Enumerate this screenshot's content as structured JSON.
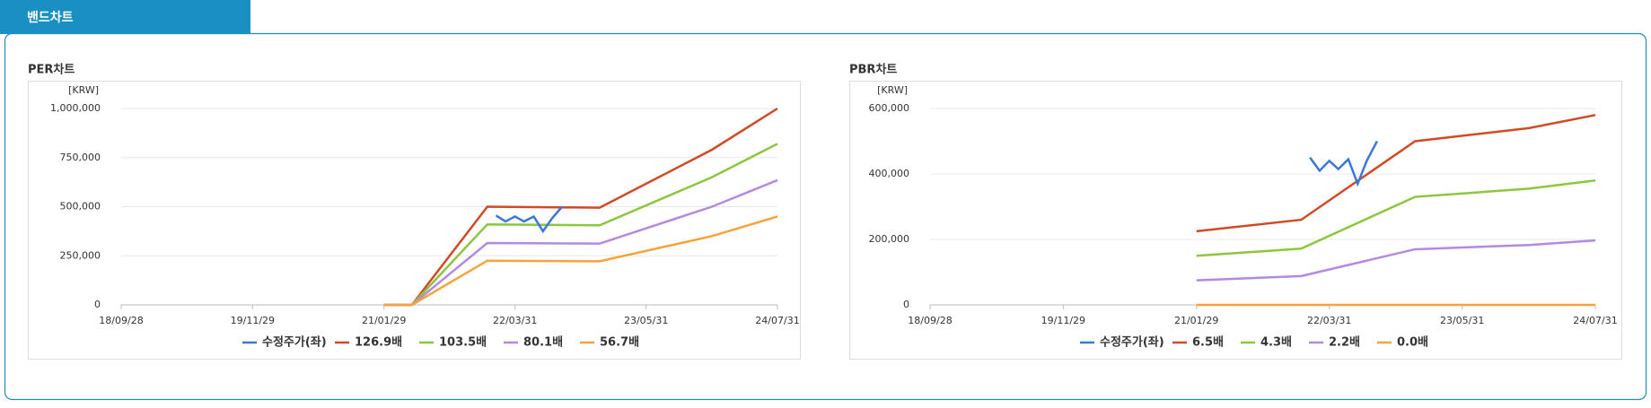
{
  "tab": {
    "title": "밴드차트"
  },
  "chart_data": [
    {
      "type": "line",
      "title": "PER차트",
      "unit": "[KRW]",
      "xlim": [
        "18/09/28",
        "24/07/31"
      ],
      "xticks": [
        "18/09/28",
        "19/11/29",
        "21/01/29",
        "22/03/31",
        "23/05/31",
        "24/07/31"
      ],
      "ylim": [
        0,
        1000000
      ],
      "yticks": [
        0,
        {
          "value": 250000,
          "label": "250,000"
        },
        {
          "value": 500000,
          "label": "500,000"
        },
        {
          "value": 750000,
          "label": "750,000"
        },
        {
          "value": 1000000,
          "label": "1,000,000"
        }
      ],
      "grid": true,
      "series": [
        {
          "name": "수정주가(좌)",
          "color": "#3a78d8",
          "x": [
            "22/01/28",
            "22/02/28",
            "22/03/31",
            "22/04/29",
            "22/05/31",
            "22/06/30",
            "22/07/29",
            "22/08/31"
          ],
          "values": [
            455000,
            425000,
            450000,
            425000,
            450000,
            375000,
            440000,
            500000
          ]
        },
        {
          "name": "126.9배",
          "color": "#d14a24",
          "x": [
            "21/01/29",
            "21/04/30",
            "21/12/31",
            "22/12/31",
            "23/12/31",
            "24/07/31"
          ],
          "values": [
            0,
            0,
            500000,
            495000,
            790000,
            1000000
          ]
        },
        {
          "name": "103.5배",
          "color": "#8cc63f",
          "x": [
            "21/01/29",
            "21/04/30",
            "21/12/31",
            "22/12/31",
            "23/12/31",
            "24/07/31"
          ],
          "values": [
            0,
            0,
            410000,
            405000,
            650000,
            820000
          ]
        },
        {
          "name": "80.1배",
          "color": "#b28ae0",
          "x": [
            "21/01/29",
            "21/04/30",
            "21/12/31",
            "22/12/31",
            "23/12/31",
            "24/07/31"
          ],
          "values": [
            0,
            0,
            315000,
            312000,
            500000,
            635000
          ]
        },
        {
          "name": "56.7배",
          "color": "#f5a33a",
          "x": [
            "21/01/29",
            "21/04/30",
            "21/12/31",
            "22/12/31",
            "23/12/31",
            "24/07/31"
          ],
          "values": [
            0,
            0,
            225000,
            222000,
            350000,
            450000
          ]
        }
      ]
    },
    {
      "type": "line",
      "title": "PBR차트",
      "unit": "[KRW]",
      "xlim": [
        "18/09/28",
        "24/07/31"
      ],
      "xticks": [
        "18/09/28",
        "19/11/29",
        "21/01/29",
        "22/03/31",
        "23/05/31",
        "24/07/31"
      ],
      "ylim": [
        0,
        600000
      ],
      "yticks": [
        0,
        {
          "value": 200000,
          "label": "200,000"
        },
        {
          "value": 400000,
          "label": "400,000"
        },
        {
          "value": 600000,
          "label": "600,000"
        }
      ],
      "grid": true,
      "series": [
        {
          "name": "수정주가(좌)",
          "color": "#3a78d8",
          "x": [
            "22/01/28",
            "22/02/28",
            "22/03/31",
            "22/04/29",
            "22/05/31",
            "22/06/30",
            "22/07/29",
            "22/08/31"
          ],
          "values": [
            450000,
            410000,
            440000,
            415000,
            445000,
            370000,
            440000,
            500000
          ]
        },
        {
          "name": "6.5배",
          "color": "#d14a24",
          "x": [
            "21/01/29",
            "21/12/31",
            "22/12/31",
            "23/12/31",
            "24/07/31"
          ],
          "values": [
            225000,
            260000,
            500000,
            540000,
            580000
          ]
        },
        {
          "name": "4.3배",
          "color": "#8cc63f",
          "x": [
            "21/01/29",
            "21/12/31",
            "22/12/31",
            "23/12/31",
            "24/07/31"
          ],
          "values": [
            150000,
            172000,
            330000,
            355000,
            380000
          ]
        },
        {
          "name": "2.2배",
          "color": "#b28ae0",
          "x": [
            "21/01/29",
            "21/12/31",
            "22/12/31",
            "23/12/31",
            "24/07/31"
          ],
          "values": [
            75000,
            88000,
            170000,
            183000,
            197000
          ]
        },
        {
          "name": "0.0배",
          "color": "#f5a33a",
          "x": [
            "21/01/29",
            "21/12/31",
            "22/12/31",
            "23/12/31",
            "24/07/31"
          ],
          "values": [
            0,
            0,
            0,
            0,
            0
          ]
        }
      ]
    }
  ]
}
